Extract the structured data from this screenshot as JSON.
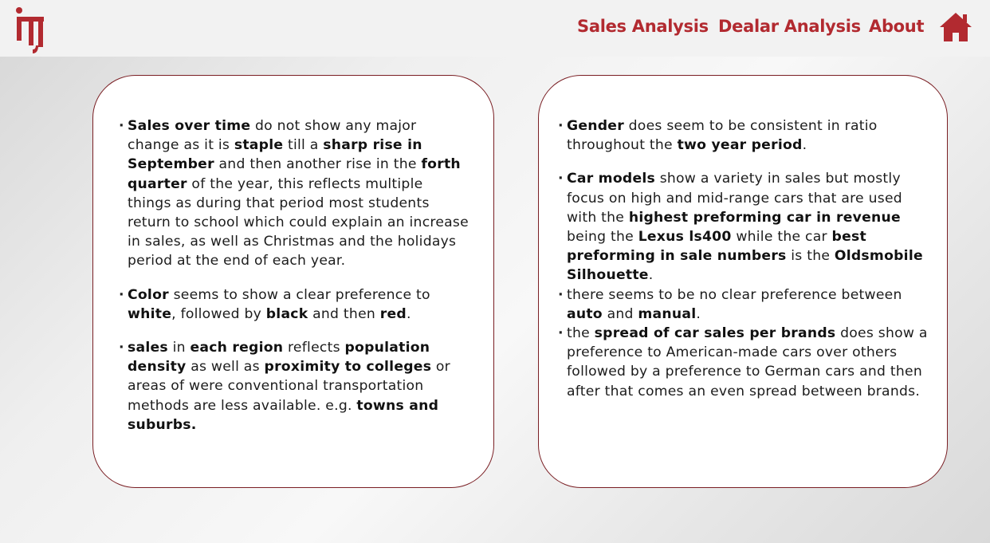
{
  "brand": {
    "logo_icon": "iti-logo-icon",
    "accent_color": "#b22a30",
    "border_color": "#7a1f24"
  },
  "nav": {
    "links": [
      {
        "label": "Sales Analysis"
      },
      {
        "label": "Dealar Analysis"
      },
      {
        "label": "About"
      }
    ],
    "home_icon": "home-icon"
  },
  "left_card": {
    "bullets": [
      {
        "segments": [
          {
            "text": "Sales over time",
            "bold": true
          },
          {
            "text": " do not show any major change as it is ",
            "bold": false
          },
          {
            "text": "staple",
            "bold": true
          },
          {
            "text": " till a ",
            "bold": false
          },
          {
            "text": "sharp rise in September",
            "bold": true
          },
          {
            "text": " and then another rise in the ",
            "bold": false
          },
          {
            "text": "forth quarter",
            "bold": true
          },
          {
            "text": " of the year, this reflects multiple things as during that period most students return to school which could explain an increase in sales, as well as Christmas and the holidays period at the end of each year.",
            "bold": false
          }
        ]
      },
      {
        "segments": [
          {
            "text": "Color",
            "bold": true
          },
          {
            "text": " seems to show a clear preference to ",
            "bold": false
          },
          {
            "text": "white",
            "bold": true
          },
          {
            "text": ", followed by ",
            "bold": false
          },
          {
            "text": "black",
            "bold": true
          },
          {
            "text": " and then ",
            "bold": false
          },
          {
            "text": "red",
            "bold": true
          },
          {
            "text": ".",
            "bold": false
          }
        ]
      },
      {
        "segments": [
          {
            "text": "sales",
            "bold": true
          },
          {
            "text": " in ",
            "bold": false
          },
          {
            "text": "each region",
            "bold": true
          },
          {
            "text": " reflects ",
            "bold": false
          },
          {
            "text": "population density",
            "bold": true
          },
          {
            "text": " as well as ",
            "bold": false
          },
          {
            "text": "proximity to colleges",
            "bold": true
          },
          {
            "text": " or areas of were conventional transportation methods are less available. e.g. ",
            "bold": false
          },
          {
            "text": "towns and suburbs.",
            "bold": true
          }
        ]
      }
    ]
  },
  "right_card": {
    "bullets": [
      {
        "gap": true,
        "segments": [
          {
            "text": "Gender",
            "bold": true
          },
          {
            "text": " does seem to be consistent in ratio throughout the ",
            "bold": false
          },
          {
            "text": "two year period",
            "bold": true
          },
          {
            "text": ".",
            "bold": false
          }
        ]
      },
      {
        "gap": false,
        "segments": [
          {
            "text": "Car models",
            "bold": true
          },
          {
            "text": " show a variety in sales but mostly focus on high and mid-range cars that are used with the ",
            "bold": false
          },
          {
            "text": "highest preforming car in revenue",
            "bold": true
          },
          {
            "text": " being the ",
            "bold": false
          },
          {
            "text": "Lexus ls400",
            "bold": true
          },
          {
            "text": " while the car ",
            "bold": false
          },
          {
            "text": "best preforming in sale numbers",
            "bold": true
          },
          {
            "text": " is the ",
            "bold": false
          },
          {
            "text": "Oldsmobile Silhouette",
            "bold": true
          },
          {
            "text": ".",
            "bold": false
          }
        ]
      },
      {
        "gap": false,
        "segments": [
          {
            "text": " there seems to be no clear preference between ",
            "bold": false
          },
          {
            "text": "auto",
            "bold": true
          },
          {
            "text": " and ",
            "bold": false
          },
          {
            "text": "manual",
            "bold": true
          },
          {
            "text": ".",
            "bold": false
          }
        ]
      },
      {
        "gap": false,
        "segments": [
          {
            "text": "the ",
            "bold": false
          },
          {
            "text": "spread of car sales per brands",
            "bold": true
          },
          {
            "text": " does show a preference to American-made cars over others followed by a preference to German cars and then after that comes an even spread between brands.",
            "bold": false
          }
        ]
      }
    ]
  }
}
